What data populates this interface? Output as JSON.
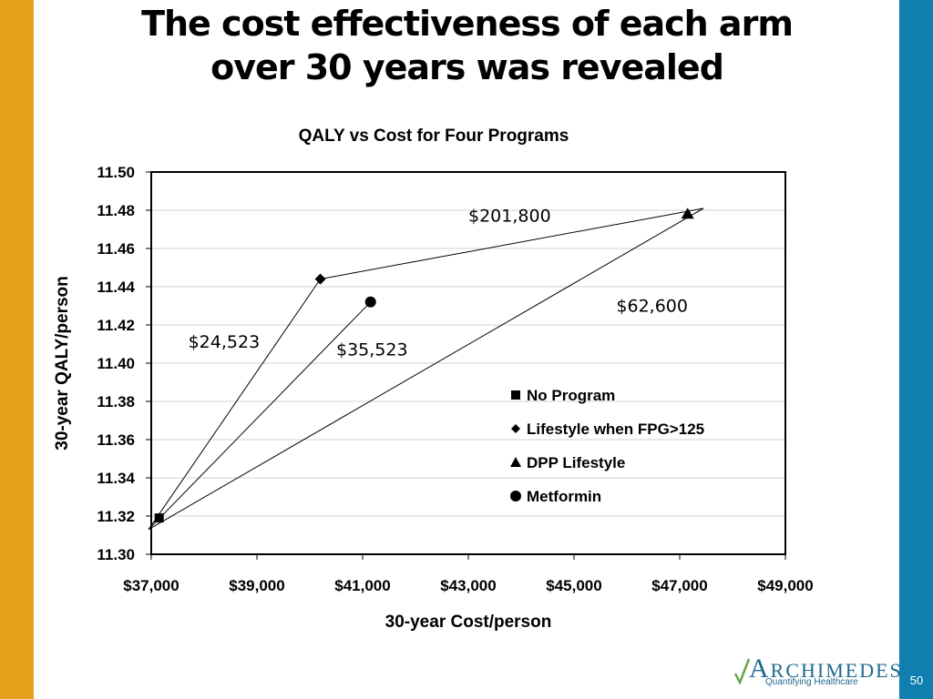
{
  "slide": {
    "title_line1": "The cost effectiveness of each arm",
    "title_line2": "over 30 years was revealed",
    "slide_number": "50",
    "accent_left": "#E3A21A",
    "accent_right": "#0F7FAF"
  },
  "logo": {
    "name_first": "A",
    "name_rest": "RCHIMEDES",
    "tagline": "Quantifying Healthcare"
  },
  "chart_data": {
    "type": "scatter",
    "title": "QALY vs Cost for Four Programs",
    "xlabel": "30-year Cost/person",
    "ylabel": "30-year QALY/person",
    "xlim": [
      37000,
      49000
    ],
    "ylim": [
      11.3,
      11.5
    ],
    "x_ticks": [
      "$37,000",
      "$39,000",
      "$41,000",
      "$43,000",
      "$45,000",
      "$47,000",
      "$49,000"
    ],
    "x_tick_values": [
      37000,
      39000,
      41000,
      43000,
      45000,
      47000,
      49000
    ],
    "y_ticks": [
      "11.50",
      "11.48",
      "11.46",
      "11.44",
      "11.42",
      "11.40",
      "11.38",
      "11.36",
      "11.34",
      "11.32",
      "11.30"
    ],
    "y_tick_values": [
      11.5,
      11.48,
      11.46,
      11.44,
      11.42,
      11.4,
      11.38,
      11.36,
      11.34,
      11.32,
      11.3
    ],
    "grid": true,
    "legend_position": "bottom-right",
    "series": [
      {
        "name": "No Program",
        "marker": "square",
        "x": [
          37150
        ],
        "y": [
          11.319
        ]
      },
      {
        "name": "Lifestyle when FPG>125",
        "marker": "diamond",
        "x": [
          40200
        ],
        "y": [
          11.444
        ]
      },
      {
        "name": "DPP Lifestyle",
        "marker": "triangle",
        "x": [
          47150
        ],
        "y": [
          11.478
        ]
      },
      {
        "name": "Metformin",
        "marker": "circle",
        "x": [
          41150
        ],
        "y": [
          11.432
        ]
      }
    ],
    "connecting_lines": [
      {
        "from": [
          36950,
          11.313
        ],
        "to": [
          40200,
          11.444
        ]
      },
      {
        "from": [
          40200,
          11.444
        ],
        "to": [
          47450,
          11.481
        ]
      },
      {
        "from": [
          36950,
          11.313
        ],
        "to": [
          41150,
          11.432
        ]
      },
      {
        "from": [
          36950,
          11.313
        ],
        "to": [
          47450,
          11.481
        ]
      }
    ],
    "annotations": [
      {
        "text": "$201,800",
        "x": 43000,
        "y": 11.474
      },
      {
        "text": "$62,600",
        "x": 45800,
        "y": 11.427
      },
      {
        "text": "$24,523",
        "x": 37700,
        "y": 11.408
      },
      {
        "text": "$35,523",
        "x": 40500,
        "y": 11.404
      }
    ]
  }
}
